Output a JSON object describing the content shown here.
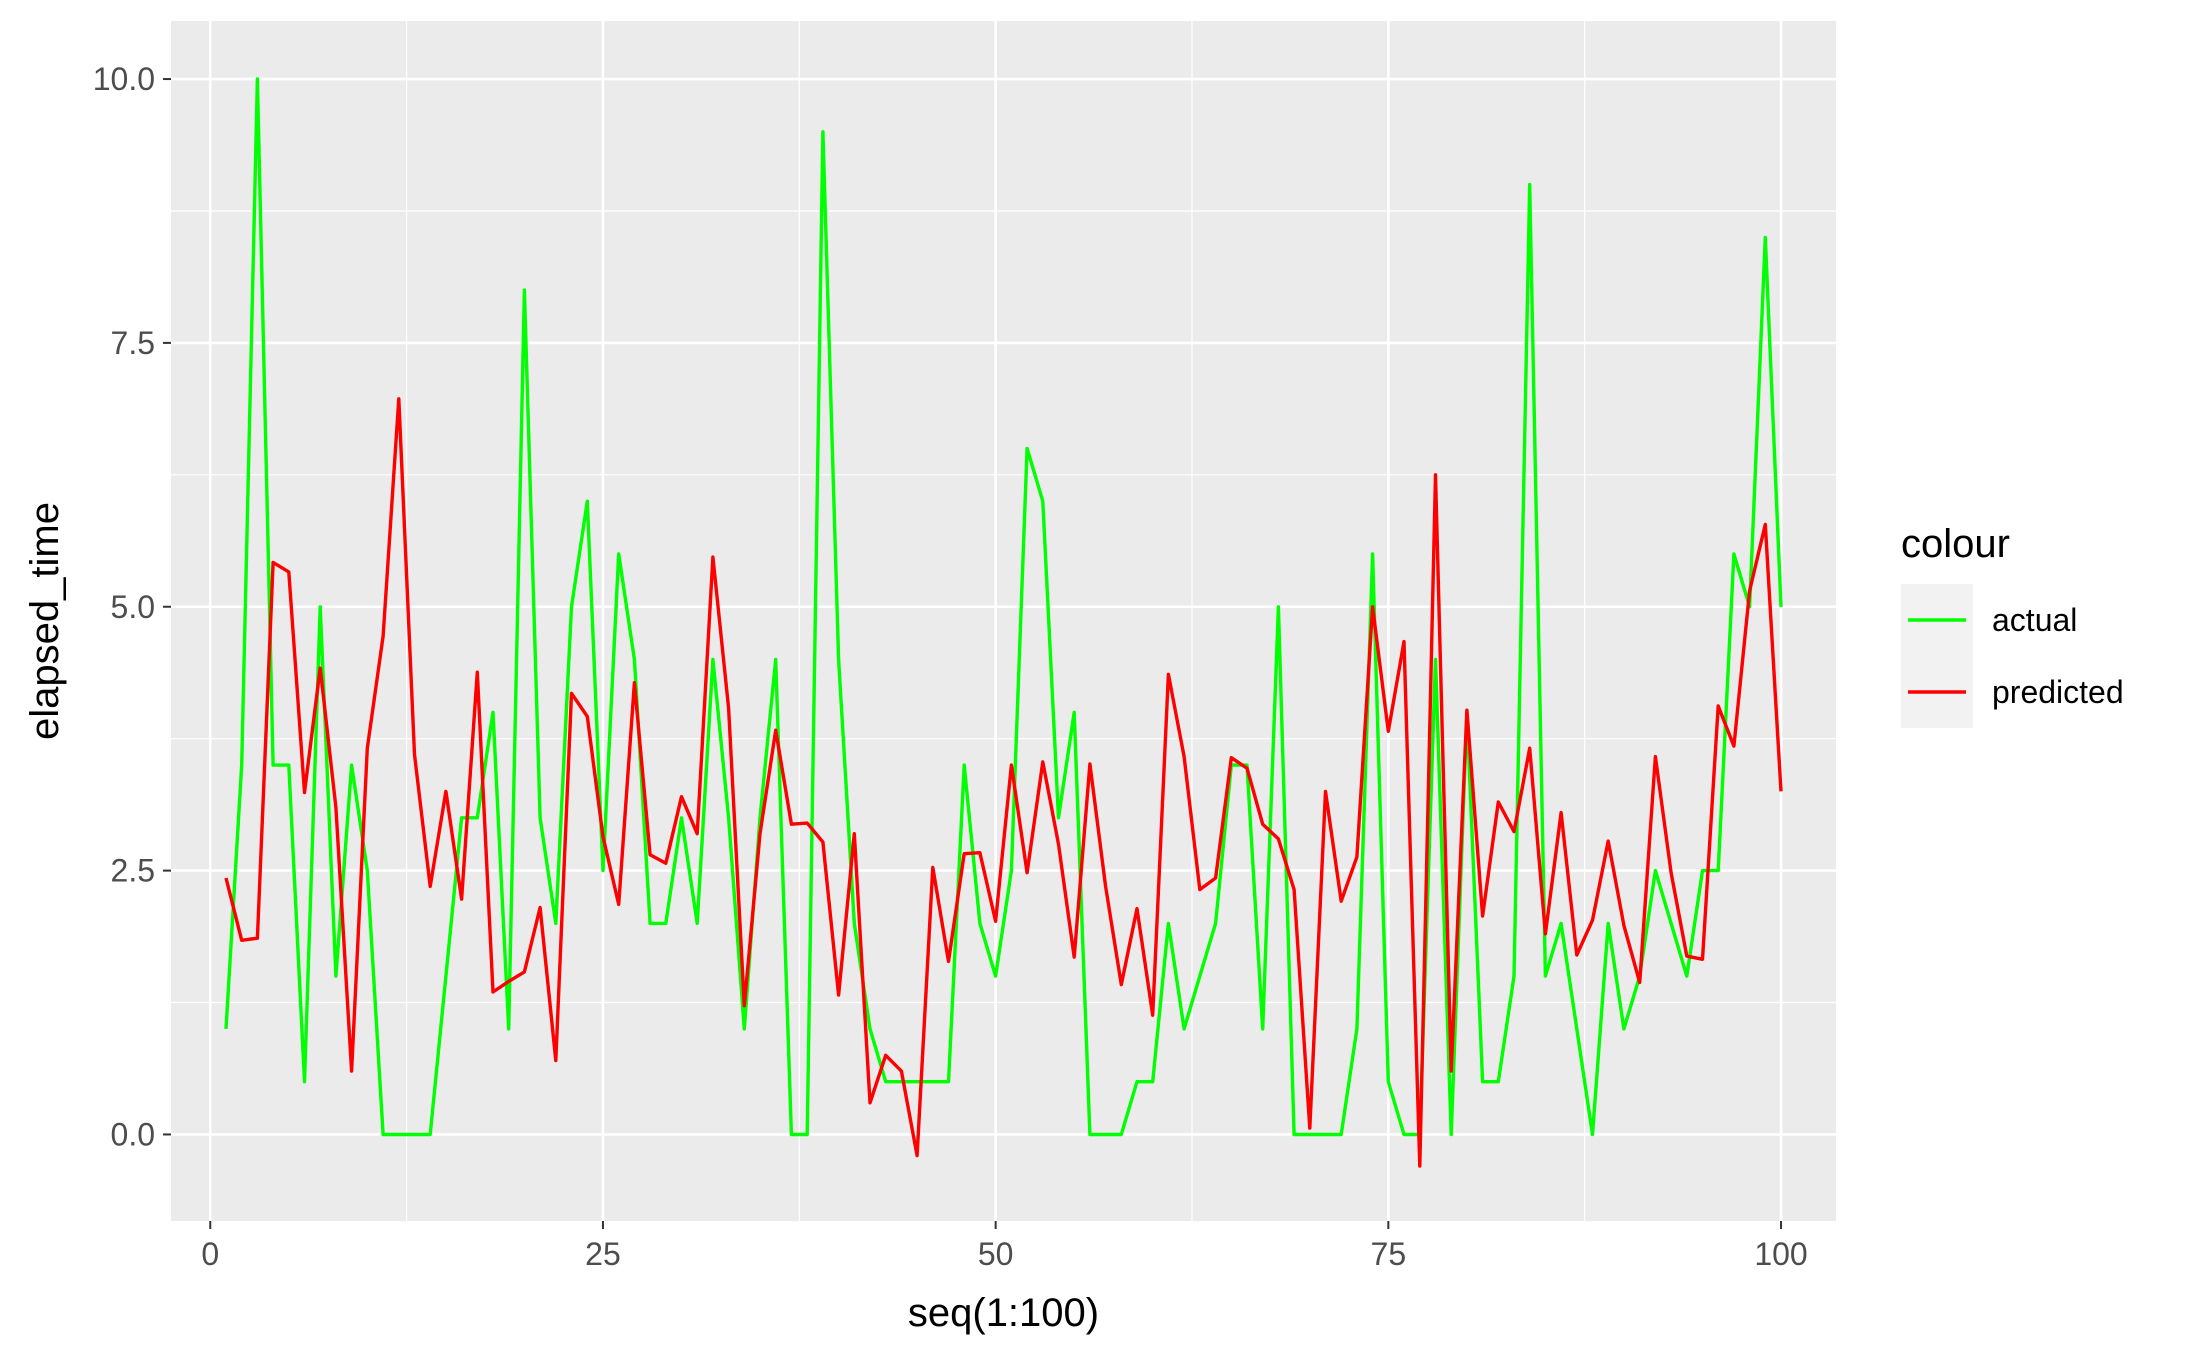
{
  "chart_data": {
    "type": "line",
    "xlabel": "seq(1:100)",
    "ylabel": "elapsed_time",
    "xlim": [
      -2.5,
      103.5
    ],
    "ylim": [
      -0.82,
      10.55
    ],
    "x_ticks": [
      0,
      25,
      50,
      75,
      100
    ],
    "x_tick_labels": [
      "0",
      "25",
      "50",
      "75",
      "100"
    ],
    "y_ticks": [
      0,
      2.5,
      5,
      7.5,
      10
    ],
    "y_tick_labels": [
      "0.0",
      "2.5",
      "5.0",
      "7.5",
      "10.0"
    ],
    "grid": true,
    "panel_background": "#ebebeb",
    "grid_color": "#ffffff",
    "legend": {
      "title": "colour",
      "position": "right",
      "entries": [
        {
          "label": "actual",
          "color": "#00ff00"
        },
        {
          "label": "predicted",
          "color": "#ff0000"
        }
      ]
    },
    "x": [
      1,
      2,
      3,
      4,
      5,
      6,
      7,
      8,
      9,
      10,
      11,
      12,
      13,
      14,
      15,
      16,
      17,
      18,
      19,
      20,
      21,
      22,
      23,
      24,
      25,
      26,
      27,
      28,
      29,
      30,
      31,
      32,
      33,
      34,
      35,
      36,
      37,
      38,
      39,
      40,
      41,
      42,
      43,
      44,
      45,
      46,
      47,
      48,
      49,
      50,
      51,
      52,
      53,
      54,
      55,
      56,
      57,
      58,
      59,
      60,
      61,
      62,
      63,
      64,
      65,
      66,
      67,
      68,
      69,
      70,
      71,
      72,
      73,
      74,
      75,
      76,
      77,
      78,
      79,
      80,
      81,
      82,
      83,
      84,
      85,
      86,
      87,
      88,
      89,
      90,
      91,
      92,
      93,
      94,
      95,
      96,
      97,
      98,
      99,
      100
    ],
    "series": [
      {
        "name": "actual",
        "color": "#00ff00",
        "values": [
          1.0,
          3.5,
          10.0,
          3.5,
          3.5,
          0.5,
          5.0,
          1.5,
          3.5,
          2.5,
          0.0,
          0.0,
          0.0,
          0.0,
          1.5,
          3.0,
          3.0,
          4.0,
          1.0,
          8.0,
          3.0,
          2.0,
          5.0,
          6.0,
          2.5,
          5.5,
          4.5,
          2.0,
          2.0,
          3.0,
          2.0,
          4.5,
          3.0,
          1.0,
          3.0,
          4.5,
          0.0,
          0.0,
          9.5,
          4.5,
          2.0,
          1.0,
          0.5,
          0.5,
          0.5,
          0.5,
          0.5,
          3.5,
          2.0,
          1.5,
          2.5,
          6.5,
          6.0,
          3.0,
          4.0,
          0.0,
          0.0,
          0.0,
          0.5,
          0.5,
          2.0,
          1.0,
          1.5,
          2.0,
          3.5,
          3.5,
          1.0,
          5.0,
          0.0,
          0.0,
          0.0,
          0.0,
          1.0,
          5.5,
          0.5,
          0.0,
          0.0,
          4.5,
          0.0,
          4.0,
          0.5,
          0.5,
          1.5,
          9.0,
          1.5,
          2.0,
          1.0,
          0.0,
          2.0,
          1.0,
          1.5,
          2.5,
          2.0,
          1.5,
          2.5,
          2.5,
          5.5,
          5.0,
          8.5,
          5.0
        ]
      },
      {
        "name": "predicted",
        "color": "#ff0000",
        "values": [
          2.43,
          1.84,
          1.86,
          5.42,
          5.33,
          3.24,
          4.42,
          3.1,
          0.6,
          3.66,
          4.72,
          6.97,
          3.6,
          2.35,
          3.25,
          2.23,
          4.38,
          1.35,
          1.45,
          1.54,
          2.15,
          0.7,
          4.18,
          3.96,
          2.82,
          2.18,
          4.28,
          2.65,
          2.57,
          3.2,
          2.85,
          5.47,
          4.04,
          1.22,
          2.85,
          3.83,
          2.94,
          2.95,
          2.77,
          1.32,
          2.85,
          0.3,
          0.75,
          0.6,
          -0.2,
          2.53,
          1.64,
          2.66,
          2.67,
          2.02,
          3.5,
          2.48,
          3.53,
          2.75,
          1.68,
          3.51,
          2.35,
          1.42,
          2.14,
          1.13,
          4.36,
          3.58,
          2.32,
          2.43,
          3.57,
          3.47,
          2.94,
          2.8,
          2.32,
          0.06,
          3.25,
          2.21,
          2.63,
          5.0,
          3.82,
          4.67,
          -0.3,
          6.25,
          0.6,
          4.02,
          2.07,
          3.15,
          2.87,
          3.66,
          1.9,
          3.05,
          1.7,
          2.03,
          2.78,
          1.98,
          1.44,
          3.58,
          2.48,
          1.69,
          1.66,
          4.06,
          3.68,
          5.15,
          5.78,
          3.25
        ]
      }
    ]
  }
}
